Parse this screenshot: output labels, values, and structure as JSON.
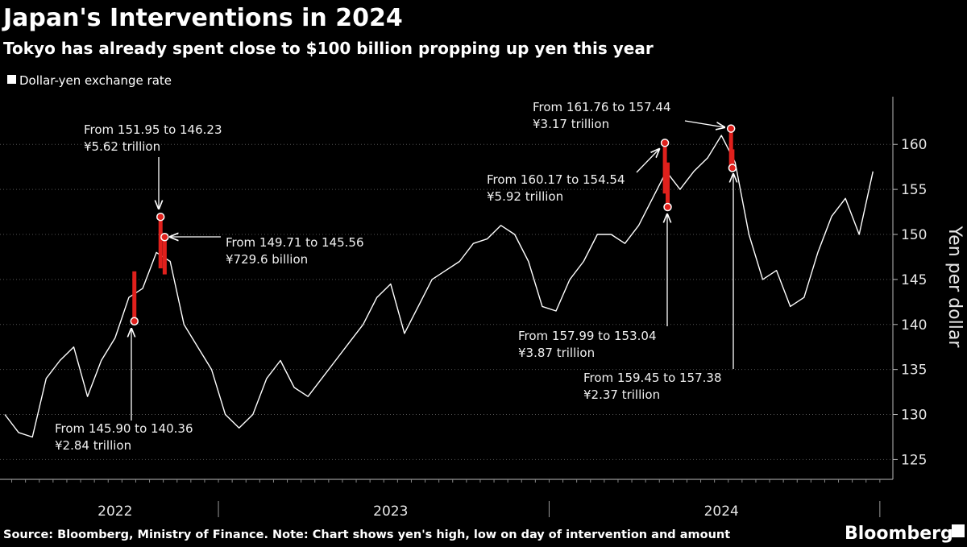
{
  "chart_data": {
    "type": "line",
    "title": "Japan's Interventions in 2024",
    "subtitle": "Tokyo has already spent close to $100 billion propping up yen this year",
    "y_axis_label": "Yen per dollar",
    "source": "Source: Bloomberg, Ministry of Finance. Note: Chart shows yen's high, low on day of intervention and amount",
    "brand": "Bloomberg",
    "legend": true,
    "grid": true,
    "ylim": [
      122.8,
      165.3
    ],
    "yticks": [
      125,
      130,
      135,
      140,
      145,
      150,
      155,
      160
    ],
    "categories": [
      null,
      null,
      null,
      null,
      null,
      null,
      null,
      null,
      "2022",
      null,
      null,
      null,
      null,
      null,
      null,
      null,
      null,
      null,
      null,
      null,
      null,
      null,
      null,
      null,
      null,
      null,
      null,
      null,
      "2023",
      null,
      null,
      null,
      null,
      null,
      null,
      null,
      null,
      null,
      null,
      null,
      null,
      null,
      null,
      null,
      null,
      null,
      null,
      null,
      null,
      null,
      null,
      null,
      "2024",
      null,
      null,
      null,
      null,
      null,
      null,
      null,
      null,
      null,
      null,
      null
    ],
    "series": [
      {
        "name": "Dollar-yen exchange rate",
        "color": "#ffffff",
        "values": [
          130,
          128,
          127.5,
          134,
          136,
          137.5,
          132,
          136,
          138.5,
          143,
          144,
          148,
          147,
          140,
          137.5,
          135,
          130,
          128.5,
          130,
          134,
          136,
          133,
          132,
          134,
          136,
          138,
          140,
          143,
          144.5,
          139,
          142,
          145,
          146,
          147,
          149,
          149.5,
          151,
          150,
          147,
          142,
          141.5,
          145,
          147,
          150,
          150,
          149,
          151,
          154,
          157,
          155,
          157,
          158.5,
          161,
          158,
          150,
          145,
          146,
          142,
          143,
          148,
          152,
          154,
          150,
          157
        ]
      }
    ],
    "interventions": {
      "color": "#e0201c",
      "items": [
        {
          "x": 9.4,
          "high": 145.9,
          "low": 140.36,
          "label": "From 145.90 to 140.36",
          "amount": "¥2.84 trillion"
        },
        {
          "x": 11.3,
          "high": 151.95,
          "low": 146.23,
          "label": "From 151.95 to 146.23",
          "amount": "¥5.62 trillion"
        },
        {
          "x": 11.6,
          "high": 149.71,
          "low": 145.56,
          "label": "From 149.71 to 145.56",
          "amount": "¥729.6 billion"
        },
        {
          "x": 47.9,
          "high": 160.17,
          "low": 154.54,
          "label": "From 160.17 to 154.54",
          "amount": "¥5.92 trillion"
        },
        {
          "x": 48.1,
          "high": 157.99,
          "low": 153.04,
          "label": "From 157.99 to 153.04",
          "amount": "¥3.87 trillion"
        },
        {
          "x": 52.7,
          "high": 161.76,
          "low": 157.44,
          "label": "From 161.76 to 157.44",
          "amount": "¥3.17 trillion"
        },
        {
          "x": 52.8,
          "high": 159.45,
          "low": 157.38,
          "label": "From 159.45 to 157.38",
          "amount": "¥2.37 trillion"
        }
      ]
    }
  }
}
